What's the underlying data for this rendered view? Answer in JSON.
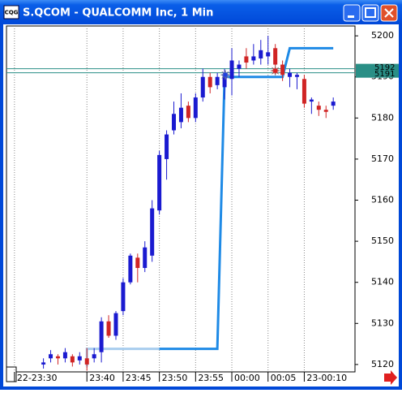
{
  "window": {
    "title": "S.QCOM - QUALCOMM Inc, 1 Min",
    "icon": "CQG"
  },
  "chart_data": {
    "type": "candlestick",
    "x": [
      4,
      5,
      6,
      7,
      8,
      9,
      10,
      11,
      12,
      13,
      14,
      15,
      16,
      17,
      18,
      19,
      20,
      21,
      22,
      23,
      24,
      25,
      26,
      27,
      28,
      29,
      30,
      31,
      32,
      33,
      34,
      35,
      36,
      37,
      38,
      39,
      40,
      41,
      42,
      43,
      44
    ],
    "open": [
      5120,
      5121.5,
      5122,
      5121.5,
      5122,
      5121,
      5121.5,
      5121.5,
      5123,
      5130.5,
      5127,
      5133,
      5140,
      5146,
      5143.5,
      5146.5,
      5157.5,
      5170,
      5177,
      5179,
      5183,
      5180,
      5185,
      5190,
      5188,
      5187.5,
      5189.5,
      5192,
      5195,
      5194,
      5194.5,
      5195,
      5197,
      5193,
      5190,
      5190,
      5189.5,
      5184,
      5183,
      5182,
      5183
    ],
    "high": [
      5121.5,
      5123.5,
      5122.5,
      5124,
      5122.5,
      5123,
      5124,
      5124,
      5131.5,
      5132,
      5133,
      5141,
      5147,
      5147,
      5150,
      5160,
      5172,
      5177,
      5184,
      5186,
      5184,
      5186,
      5192,
      5191,
      5191,
      5192,
      5197,
      5194,
      5197,
      5198,
      5199,
      5200,
      5198,
      5194,
      5192,
      5191,
      5190.5,
      5185,
      5184,
      5183,
      5185
    ],
    "low": [
      5119,
      5120.5,
      5120,
      5120.5,
      5119.5,
      5120,
      5118.5,
      5120.5,
      5120.5,
      5126.5,
      5126,
      5132,
      5139.5,
      5140,
      5142.5,
      5145,
      5156.5,
      5165,
      5176,
      5177.5,
      5179,
      5179,
      5184,
      5186,
      5187,
      5184.5,
      5185.5,
      5190,
      5192,
      5193,
      5193,
      5193,
      5192,
      5189,
      5187.5,
      5187,
      5182.5,
      5181,
      5180.5,
      5180,
      5182
    ],
    "close": [
      5120.5,
      5122.5,
      5121.5,
      5123,
      5120.5,
      5122,
      5120,
      5122.5,
      5130.5,
      5127,
      5132.5,
      5140,
      5146.5,
      5143.5,
      5148.5,
      5158,
      5171,
      5176,
      5181,
      5182.5,
      5180,
      5185,
      5190,
      5187.5,
      5190,
      5190.5,
      5194,
      5193,
      5193.5,
      5195,
      5196.5,
      5196,
      5193,
      5190.5,
      5191,
      5190.5,
      5183.5,
      5184.5,
      5182,
      5181.5,
      5184
    ],
    "up_color": "#1a1ad0",
    "down_color": "#d02424",
    "lines": [
      {
        "color": "#a8cdee",
        "x": [
          10,
          10,
          20
        ],
        "values": [
          5119.5,
          5123.8,
          5123.8
        ]
      },
      {
        "color": "#1e8ae6",
        "x": [
          20,
          28,
          29,
          37,
          38,
          44
        ],
        "values": [
          5123.8,
          5123.8,
          5190,
          5190,
          5197,
          5197
        ]
      }
    ],
    "markers": [
      {
        "x": 29.1,
        "value": 5190.5,
        "color": "#2040e0"
      },
      {
        "x": 36,
        "value": 5191.5,
        "color": "#e02020"
      }
    ],
    "levels": [
      {
        "value": 5192,
        "label": "5192"
      },
      {
        "value": 5191,
        "label": "5191"
      }
    ],
    "level_color": "#2a8f86",
    "xlim": [
      -1.1,
      47
    ],
    "ylim": [
      5118.2,
      5202.4
    ],
    "xticks": [
      {
        "value": 0,
        "label": "22-23:30"
      },
      {
        "value": 10,
        "label": "23:40"
      },
      {
        "value": 15,
        "label": "23:45"
      },
      {
        "value": 20,
        "label": "23:50"
      },
      {
        "value": 25,
        "label": "23:55"
      },
      {
        "value": 30,
        "label": "00:00"
      },
      {
        "value": 35,
        "label": "00:05"
      },
      {
        "value": 40,
        "label": "23-00:10"
      }
    ],
    "yticks": [
      5120,
      5130,
      5140,
      5150,
      5160,
      5170,
      5180,
      5190,
      5200
    ],
    "grid": true
  }
}
